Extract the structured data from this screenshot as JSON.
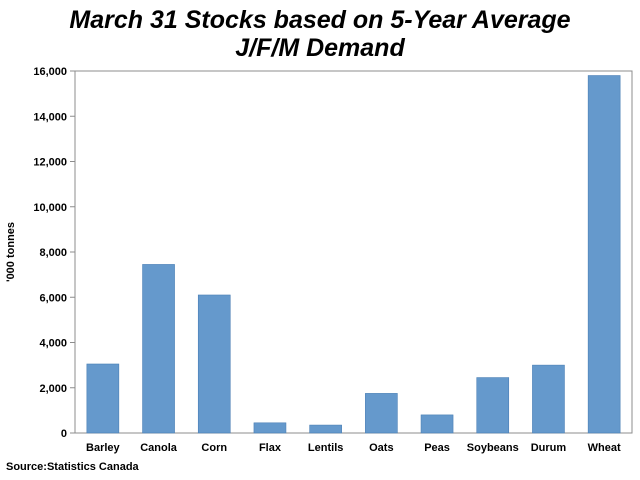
{
  "chart_data": {
    "type": "bar",
    "title_line1": "March 31 Stocks based on 5-Year Average",
    "title_line2": "J/F/M Demand",
    "xlabel": "",
    "ylabel": "'000 tonnes",
    "ylim": [
      0,
      16000
    ],
    "yticks": [
      0,
      2000,
      4000,
      6000,
      8000,
      10000,
      12000,
      14000,
      16000
    ],
    "ytick_labels": [
      "0",
      "2,000",
      "4,000",
      "6,000",
      "8,000",
      "10,000",
      "12,000",
      "14,000",
      "16,000"
    ],
    "grid": false,
    "legend": "none",
    "bar_color": "#6599CC",
    "categories": [
      "Barley",
      "Canola",
      "Corn",
      "Flax",
      "Lentils",
      "Oats",
      "Peas",
      "Soybeans",
      "Durum",
      "Wheat"
    ],
    "values": [
      3050,
      7450,
      6100,
      450,
      350,
      1750,
      800,
      2450,
      3000,
      15800
    ]
  },
  "source": "Source:Statistics Canada"
}
